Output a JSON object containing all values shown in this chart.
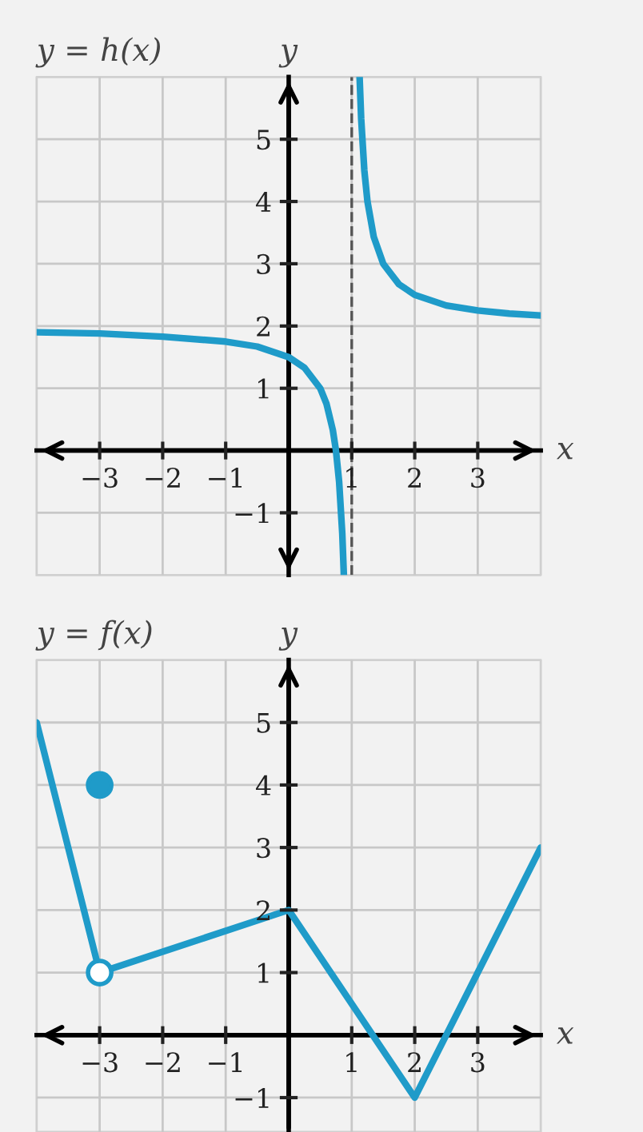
{
  "chart_data": [
    {
      "type": "line",
      "title": "y = h(x)",
      "xlabel": "x",
      "ylabel": "y",
      "xlim": [
        -4,
        4
      ],
      "ylim": [
        -2,
        6
      ],
      "xticks": [
        {
          "value": -3,
          "label": "−3"
        },
        {
          "value": -2,
          "label": "−2"
        },
        {
          "value": -1,
          "label": "−1"
        },
        1,
        2,
        3
      ],
      "yticks": [
        {
          "value": -1,
          "label": "−1"
        },
        1,
        2,
        3,
        4,
        5
      ],
      "grid": true,
      "marker": "none",
      "ref_lines": [
        {
          "axis": "x",
          "value": 1,
          "color": "#555555",
          "line_style": "dashed"
        }
      ],
      "series": [
        {
          "color": "#1f9bc9",
          "x": [
            -4,
            -3,
            -2,
            -1,
            -0.5,
            0,
            0.25,
            0.5,
            0.6,
            0.7,
            0.75,
            0.8,
            0.85,
            0.875
          ],
          "values": [
            1.9,
            1.88,
            1.83,
            1.75,
            1.67,
            1.5,
            1.33,
            1.0,
            0.75,
            0.33,
            0,
            -0.5,
            -1.33,
            -2
          ]
        },
        {
          "color": "#1f9bc9",
          "x": [
            1.125,
            1.15,
            1.2,
            1.25,
            1.35,
            1.5,
            1.75,
            2,
            2.5,
            3,
            3.5,
            4
          ],
          "values": [
            6,
            5.33,
            4.5,
            4,
            3.43,
            3,
            2.67,
            2.5,
            2.33,
            2.25,
            2.2,
            2.17
          ]
        }
      ]
    },
    {
      "type": "line",
      "title": "y = f(x)",
      "xlabel": "x",
      "ylabel": "y",
      "xlim": [
        -4,
        4
      ],
      "ylim": [
        -1.55,
        6
      ],
      "xticks": [
        {
          "value": -3,
          "label": "−3"
        },
        {
          "value": -2,
          "label": "−2"
        },
        {
          "value": -1,
          "label": "−1"
        },
        1,
        2,
        3
      ],
      "yticks": [
        {
          "value": -1,
          "label": "−1"
        },
        1,
        2,
        3,
        4,
        5
      ],
      "grid": true,
      "marker": "none",
      "series": [
        {
          "color": "#1f9bc9",
          "x": [
            -4,
            -3,
            0,
            2,
            4
          ],
          "values": [
            5,
            1,
            2,
            -1,
            3
          ]
        },
        {
          "type": "scatter",
          "marker": "circle",
          "color": "#ffffff",
          "x": [
            -3
          ],
          "values": [
            1
          ]
        },
        {
          "type": "scatter",
          "marker": "circle",
          "color": "#1f9bc9",
          "x": [
            -3
          ],
          "values": [
            4
          ]
        }
      ]
    }
  ]
}
